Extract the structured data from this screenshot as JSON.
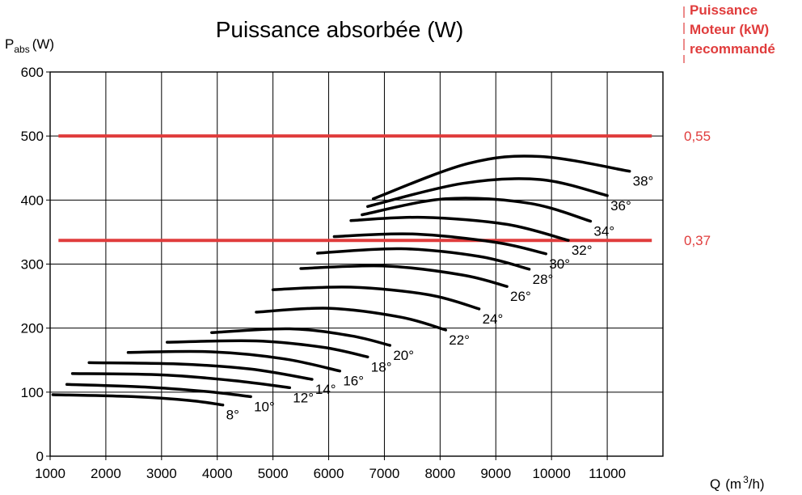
{
  "chart_data": {
    "type": "line",
    "title": "Puissance absorbée (W)",
    "ylabel": {
      "main": "P",
      "sub": "abs",
      "unit": "(W)"
    },
    "xlabel": {
      "main": "Q",
      "pre": "(m",
      "sup": "3",
      "post": "/h)"
    },
    "xlim": [
      1000,
      12000
    ],
    "ylim": [
      0,
      600
    ],
    "x_ticks": [
      "1000",
      "2000",
      "3000",
      "4000",
      "5000",
      "6000",
      "7000",
      "8000",
      "9000",
      "10000",
      "11000"
    ],
    "y_ticks": [
      "0",
      "100",
      "200",
      "300",
      "400",
      "500",
      "600"
    ],
    "grid": true,
    "right_title": [
      "Puissance",
      "Moteur (kW)",
      "recommandé"
    ],
    "reference_lines": [
      {
        "y": 500,
        "x_start": 1150,
        "x_end": 11800,
        "label": "0,55"
      },
      {
        "y": 337,
        "x_start": 1150,
        "x_end": 11800,
        "label": "0,37"
      }
    ],
    "series": [
      {
        "name": "8°",
        "label": "8°",
        "points": [
          [
            1050,
            96
          ],
          [
            2500,
            93
          ],
          [
            3500,
            87
          ],
          [
            4100,
            80
          ]
        ]
      },
      {
        "name": "10°",
        "label": "10°",
        "points": [
          [
            1300,
            112
          ],
          [
            2700,
            108
          ],
          [
            3800,
            101
          ],
          [
            4600,
            93
          ]
        ]
      },
      {
        "name": "12°",
        "label": "12°",
        "points": [
          [
            1400,
            129
          ],
          [
            3000,
            127
          ],
          [
            4300,
            118
          ],
          [
            5300,
            107
          ]
        ]
      },
      {
        "name": "14°",
        "label": "14°",
        "points": [
          [
            1700,
            146
          ],
          [
            3300,
            144
          ],
          [
            4600,
            136
          ],
          [
            5700,
            120
          ]
        ]
      },
      {
        "name": "16°",
        "label": "16°",
        "points": [
          [
            2400,
            162
          ],
          [
            3900,
            163
          ],
          [
            5200,
            152
          ],
          [
            6200,
            133
          ]
        ]
      },
      {
        "name": "18°",
        "label": "18°",
        "points": [
          [
            3100,
            178
          ],
          [
            4700,
            180
          ],
          [
            5900,
            170
          ],
          [
            6700,
            155
          ]
        ]
      },
      {
        "name": "20°",
        "label": "20°",
        "points": [
          [
            3900,
            193
          ],
          [
            5300,
            199
          ],
          [
            6400,
            188
          ],
          [
            7100,
            173
          ]
        ]
      },
      {
        "name": "22°",
        "label": "22°",
        "points": [
          [
            4700,
            225
          ],
          [
            6000,
            231
          ],
          [
            7300,
            217
          ],
          [
            8100,
            197
          ]
        ]
      },
      {
        "name": "24°",
        "label": "24°",
        "points": [
          [
            5000,
            260
          ],
          [
            6400,
            264
          ],
          [
            7800,
            252
          ],
          [
            8700,
            230
          ]
        ]
      },
      {
        "name": "26°",
        "label": "26°",
        "points": [
          [
            5500,
            293
          ],
          [
            7000,
            297
          ],
          [
            8400,
            283
          ],
          [
            9200,
            265
          ]
        ]
      },
      {
        "name": "28°",
        "label": "28°",
        "points": [
          [
            5800,
            317
          ],
          [
            7300,
            324
          ],
          [
            8700,
            312
          ],
          [
            9600,
            292
          ]
        ]
      },
      {
        "name": "30°",
        "label": "30°",
        "points": [
          [
            6100,
            343
          ],
          [
            7500,
            347
          ],
          [
            9000,
            334
          ],
          [
            9900,
            316
          ]
        ]
      },
      {
        "name": "32°",
        "label": "32°",
        "points": [
          [
            6400,
            368
          ],
          [
            7700,
            373
          ],
          [
            9200,
            362
          ],
          [
            10300,
            337
          ]
        ]
      },
      {
        "name": "34°",
        "label": "34°",
        "points": [
          [
            6600,
            377
          ],
          [
            8100,
            402
          ],
          [
            9600,
            395
          ],
          [
            10700,
            367
          ]
        ]
      },
      {
        "name": "36°",
        "label": "36°",
        "points": [
          [
            6700,
            390
          ],
          [
            8400,
            426
          ],
          [
            9800,
            432
          ],
          [
            11000,
            407
          ]
        ]
      },
      {
        "name": "38°",
        "label": "38°",
        "points": [
          [
            6800,
            402
          ],
          [
            8500,
            457
          ],
          [
            9800,
            468
          ],
          [
            11400,
            445
          ]
        ]
      }
    ]
  }
}
